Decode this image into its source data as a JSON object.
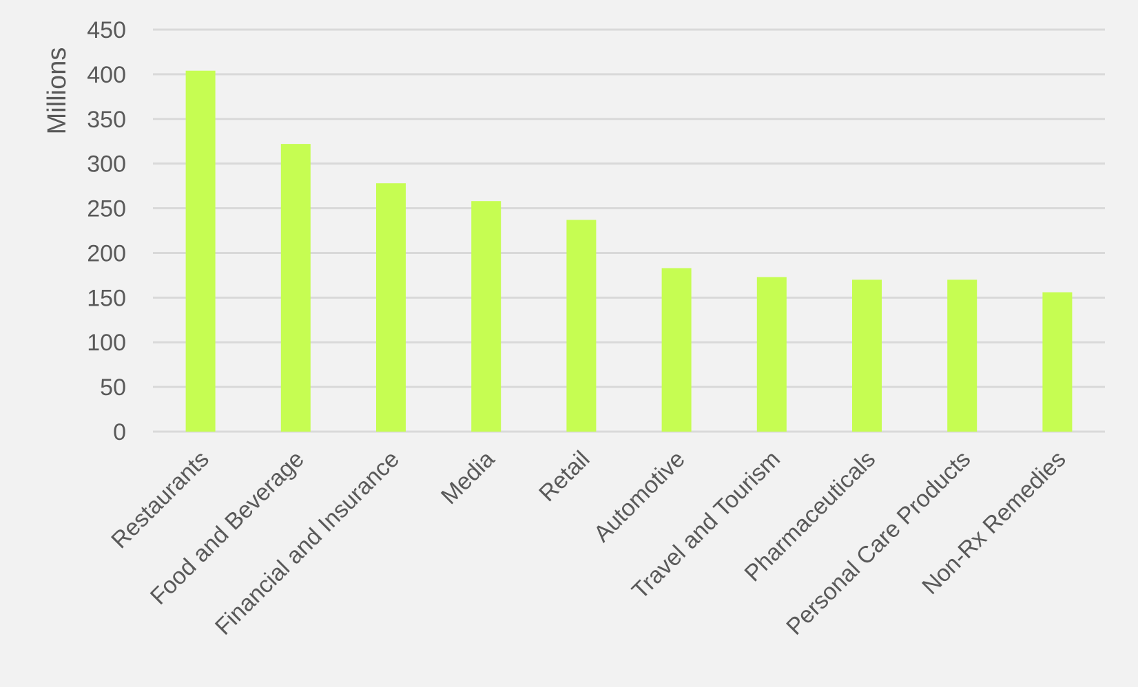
{
  "chart_data": {
    "type": "bar",
    "title": "",
    "xlabel": "",
    "ylabel": "Millions",
    "ylim": [
      0,
      450
    ],
    "yticks": [
      0,
      50,
      100,
      150,
      200,
      250,
      300,
      350,
      400,
      450
    ],
    "grid": true,
    "legend": "none",
    "bar_color": "#c6fd52",
    "categories": [
      "Restaurants",
      "Food and Beverage",
      "Financial and Insurance",
      "Media",
      "Retail",
      "Automotive",
      "Travel and Tourism",
      "Pharmaceuticals",
      "Personal Care Products",
      "Non-Rx Remedies"
    ],
    "values": [
      404,
      322,
      278,
      258,
      237,
      183,
      173,
      170,
      170,
      156
    ]
  }
}
